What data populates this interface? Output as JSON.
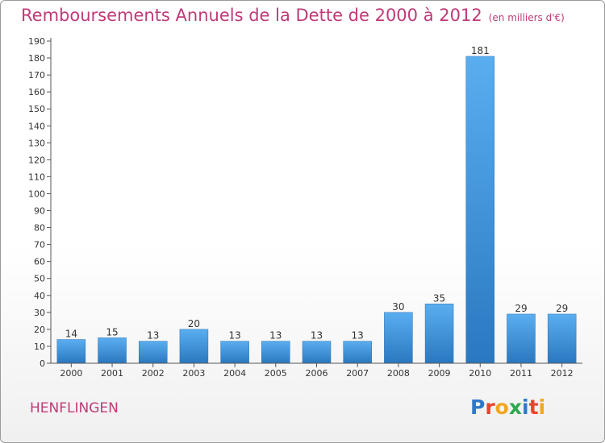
{
  "header": {
    "title": "Remboursements Annuels de la Dette de 2000 à 2012",
    "subtitle": "(en milliers d'€)"
  },
  "footer": {
    "commune": "HENFLINGEN",
    "logo_text": "Proxiti",
    "logo_letters": [
      {
        "char": "P",
        "color": "#2f78c8"
      },
      {
        "char": "r",
        "color": "#e8452c"
      },
      {
        "char": "o",
        "color": "#f2a71f"
      },
      {
        "char": "x",
        "color": "#2fa84f"
      },
      {
        "char": "i",
        "color": "#2f78c8"
      },
      {
        "char": "t",
        "color": "#e8452c"
      },
      {
        "char": "i",
        "color": "#f2a71f"
      }
    ]
  },
  "chart_data": {
    "type": "bar",
    "categories": [
      "2000",
      "2001",
      "2002",
      "2003",
      "2004",
      "2005",
      "2006",
      "2007",
      "2008",
      "2009",
      "2010",
      "2011",
      "2012"
    ],
    "values": [
      14,
      15,
      13,
      20,
      13,
      13,
      13,
      13,
      30,
      35,
      181,
      29,
      29
    ],
    "data_labels": [
      "14",
      "15",
      "13",
      "20",
      "13",
      "13",
      "13",
      "13",
      "30",
      "35",
      "181",
      "29",
      "29"
    ],
    "title": "Remboursements Annuels de la Dette de 2000 à 2012",
    "subtitle": "(en milliers d'€)",
    "xlabel": "",
    "ylabel": "",
    "ylim": [
      0,
      190
    ],
    "yticks": [
      0,
      10,
      20,
      30,
      40,
      50,
      60,
      70,
      80,
      90,
      100,
      110,
      120,
      130,
      140,
      150,
      160,
      170,
      180,
      190
    ],
    "grid": false,
    "legend": "none",
    "bar_color": "#3a8fd8"
  }
}
